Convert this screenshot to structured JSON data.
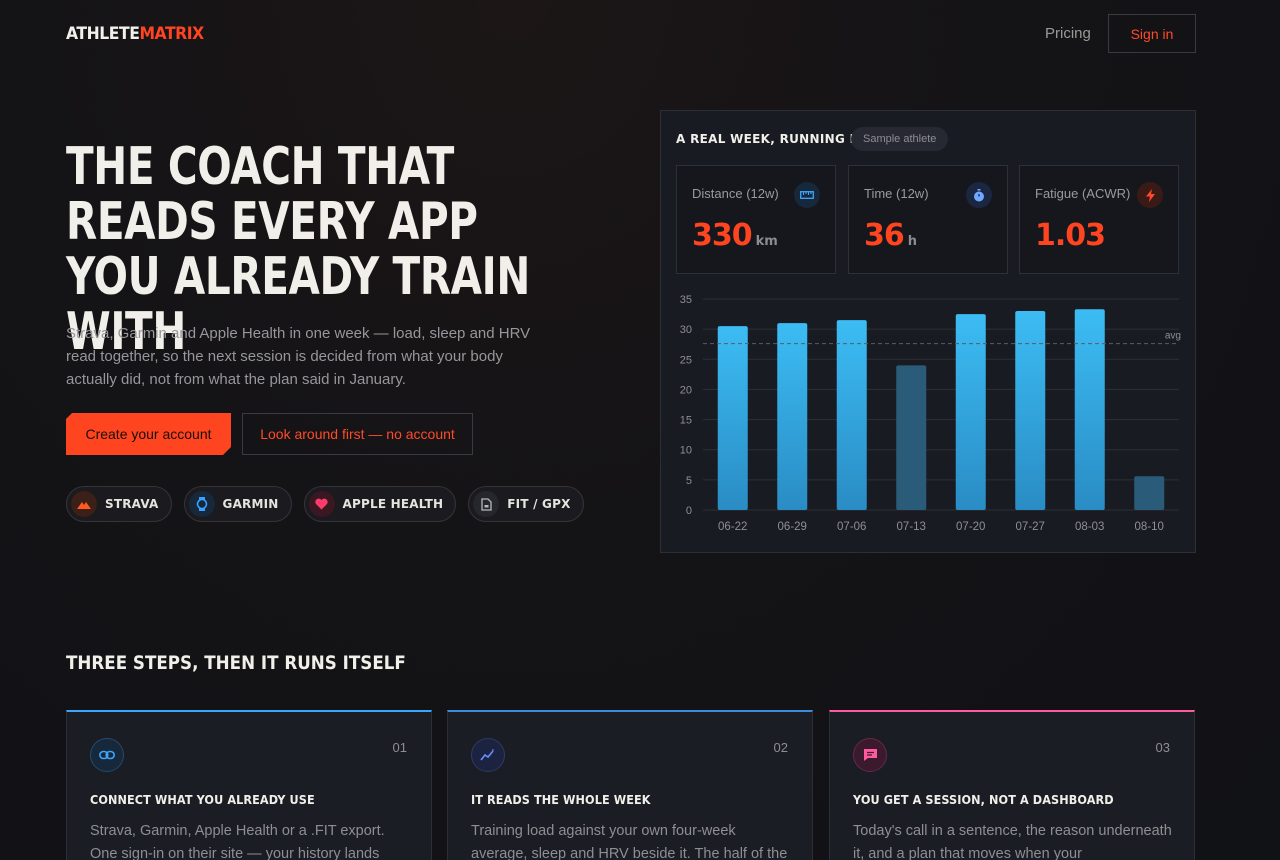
{
  "nav": {
    "logo_a": "ATHLETE",
    "logo_b": "MATRIX",
    "pricing": "Pricing",
    "signin": "Sign in"
  },
  "hero": {
    "title": "THE COACH THAT READS EVERY APP YOU ALREADY TRAIN WITH",
    "subtitle": "Strava, Garmin and Apple Health in one week — load, sleep and HRV read together, so the next session is decided from what your body actually did, not from what the plan said in January.",
    "cta_primary": "Create your account",
    "cta_secondary": "Look around first — no account"
  },
  "integrations": [
    {
      "label": "STRAVA",
      "icon": "strava-icon",
      "color": "#ff5a1f"
    },
    {
      "label": "GARMIN",
      "icon": "watch-icon",
      "color": "#3aa0ff"
    },
    {
      "label": "APPLE HEALTH",
      "icon": "heart-icon",
      "color": "#ff3b6a"
    },
    {
      "label": "FIT / GPX",
      "icon": "file-icon",
      "color": "#b8b8c0"
    }
  ],
  "panel": {
    "title": "A REAL WEEK, RUNNING LIVE",
    "badge": "Sample athlete",
    "stats": [
      {
        "label": "Distance (12w)",
        "value": "330",
        "unit": "km",
        "icon": "ruler-icon",
        "color": "#3aa6ff"
      },
      {
        "label": "Time (12w)",
        "value": "36",
        "unit": "h",
        "icon": "stopwatch-icon",
        "color": "#6ea8ff"
      },
      {
        "label": "Fatigue (ACWR)",
        "value": "1.03",
        "unit": "",
        "icon": "bolt-icon",
        "color": "#ff4a2a"
      }
    ]
  },
  "chart_data": {
    "type": "bar",
    "categories": [
      "06-22",
      "06-29",
      "07-06",
      "07-13",
      "07-20",
      "07-27",
      "08-03",
      "08-10"
    ],
    "values": [
      30.5,
      31,
      31.5,
      24,
      32.5,
      33,
      33.3,
      5.6
    ],
    "highlight": [
      true,
      true,
      true,
      false,
      true,
      true,
      true,
      false
    ],
    "average": 27.6,
    "average_label": "avg",
    "ylim": [
      0,
      35
    ],
    "yticks": [
      0,
      5,
      10,
      15,
      20,
      25,
      30,
      35
    ],
    "grid": true,
    "bar_color": "#3cb8f0",
    "dim_color": "#2a5c7a"
  },
  "steps": {
    "title": "THREE STEPS, THEN IT RUNS ITSELF",
    "cards": [
      {
        "num": "01",
        "title": "CONNECT WHAT YOU ALREADY USE",
        "body": "Strava, Garmin, Apple Health or a .FIT export. One sign-in on their site — your history lands",
        "icon": "link-icon",
        "color": "#3aa6ff"
      },
      {
        "num": "02",
        "title": "IT READS THE WHOLE WEEK",
        "body": "Training load against your own four-week average, sleep and HRV beside it. The half of the",
        "icon": "sparkle-chart-icon",
        "color": "#6a8cff"
      },
      {
        "num": "03",
        "title": "YOU GET A SESSION, NOT A DASHBOARD",
        "body": "Today's call in a sentence, the reason underneath it, and a plan that moves when your",
        "icon": "message-icon",
        "color": "#ff5aa0"
      }
    ]
  }
}
